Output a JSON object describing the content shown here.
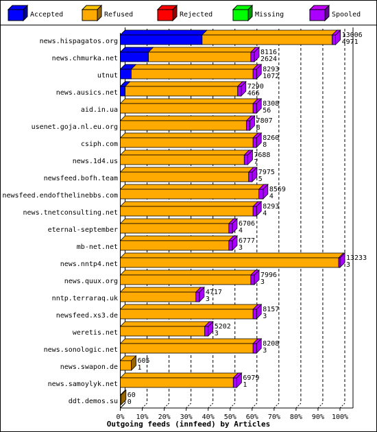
{
  "chart_data": {
    "type": "bar",
    "stacked": true,
    "orientation": "horizontal",
    "xlabel": "Outgoing feeds (innfeed) by Articles",
    "xticks": [
      "0%",
      "10%",
      "20%",
      "30%",
      "40%",
      "50%",
      "60%",
      "70%",
      "80%",
      "90%",
      "100%"
    ],
    "legend": {
      "placement": "top",
      "items": [
        {
          "name": "Accepted",
          "color": "#0000ff"
        },
        {
          "name": "Refused",
          "color": "#ffaa00"
        },
        {
          "name": "Rejected",
          "color": "#ff0000"
        },
        {
          "name": "Missing",
          "color": "#00ff00"
        },
        {
          "name": "Spooled",
          "color": "#aa00ff"
        }
      ]
    },
    "grid": true,
    "rows": [
      {
        "label": "news.hispagatos.org",
        "offered": 13006,
        "refused": 4971,
        "accepted": 0.38,
        "refused_frac": 0.62,
        "rejected": 0,
        "spooled": 0.05,
        "bar_scale": 0.98
      },
      {
        "label": "news.chmurka.net",
        "offered": 8116,
        "refused": 2624,
        "accepted": 0.21,
        "refused_frac": 0.38,
        "rejected": 0.02,
        "spooled": 0.05,
        "bar_scale": 0.61
      },
      {
        "label": "utnut",
        "offered": 8293,
        "refused": 1072,
        "accepted": 0.08,
        "refused_frac": 0.54,
        "rejected": 0,
        "spooled": 0.05,
        "bar_scale": 0.62
      },
      {
        "label": "news.ausics.net",
        "offered": 7290,
        "refused": 466,
        "accepted": 0.04,
        "refused_frac": 0.51,
        "rejected": 0,
        "spooled": 0.05,
        "bar_scale": 0.55
      },
      {
        "label": "aid.in.ua",
        "offered": 8308,
        "refused": 56,
        "accepted": 0,
        "refused_frac": 0.61,
        "rejected": 0.01,
        "spooled": 0.05,
        "bar_scale": 0.62
      },
      {
        "label": "usenet.goja.nl.eu.org",
        "offered": 7807,
        "refused": 8,
        "accepted": 0,
        "refused_frac": 0.59,
        "rejected": 0,
        "spooled": 0.05,
        "bar_scale": 0.59
      },
      {
        "label": "csiph.com",
        "offered": 8260,
        "refused": 8,
        "accepted": 0,
        "refused_frac": 0.62,
        "rejected": 0,
        "spooled": 0.05,
        "bar_scale": 0.62
      },
      {
        "label": "news.1d4.us",
        "offered": 7688,
        "refused": 7,
        "accepted": 0,
        "refused_frac": 0.58,
        "rejected": 0,
        "spooled": 0.05,
        "bar_scale": 0.58
      },
      {
        "label": "newsfeed.bofh.team",
        "offered": 7975,
        "refused": 5,
        "accepted": 0,
        "refused_frac": 0.6,
        "rejected": 0,
        "spooled": 0.05,
        "bar_scale": 0.6
      },
      {
        "label": "newsfeed.endofthelinebbs.com",
        "offered": 8569,
        "refused": 4,
        "accepted": 0,
        "refused_frac": 0.61,
        "rejected": 0,
        "spooled": 0.06,
        "bar_scale": 0.65
      },
      {
        "label": "news.tnetconsulting.net",
        "offered": 8293,
        "refused": 4,
        "accepted": 0,
        "refused_frac": 0.62,
        "rejected": 0,
        "spooled": 0.05,
        "bar_scale": 0.62
      },
      {
        "label": "eternal-september",
        "offered": 6706,
        "refused": 4,
        "accepted": 0,
        "refused_frac": 0.51,
        "rejected": 0,
        "spooled": 0.05,
        "bar_scale": 0.51
      },
      {
        "label": "mb-net.net",
        "offered": 6777,
        "refused": 3,
        "accepted": 0,
        "refused_frac": 0.51,
        "rejected": 0,
        "spooled": 0.05,
        "bar_scale": 0.51
      },
      {
        "label": "news.nntp4.net",
        "offered": 13233,
        "refused": 3,
        "accepted": 0,
        "refused_frac": 0.99,
        "rejected": 0,
        "spooled": 0.02,
        "bar_scale": 1.0
      },
      {
        "label": "news.quux.org",
        "offered": 7996,
        "refused": 3,
        "accepted": 0,
        "refused_frac": 0.61,
        "rejected": 0,
        "spooled": 0.05,
        "bar_scale": 0.61
      },
      {
        "label": "nntp.terraraq.uk",
        "offered": 4717,
        "refused": 3,
        "accepted": 0,
        "refused_frac": 0.36,
        "rejected": 0,
        "spooled": 0.05,
        "bar_scale": 0.36
      },
      {
        "label": "newsfeed.xs3.de",
        "offered": 8157,
        "refused": 3,
        "accepted": 0,
        "refused_frac": 0.62,
        "rejected": 0,
        "spooled": 0.05,
        "bar_scale": 0.62
      },
      {
        "label": "weretis.net",
        "offered": 5202,
        "refused": 3,
        "accepted": 0,
        "refused_frac": 0.4,
        "rejected": 0,
        "spooled": 0.05,
        "bar_scale": 0.4
      },
      {
        "label": "news.sonologic.net",
        "offered": 8208,
        "refused": 3,
        "accepted": 0,
        "refused_frac": 0.62,
        "rejected": 0,
        "spooled": 0.05,
        "bar_scale": 0.62
      },
      {
        "label": "news.swapon.de",
        "offered": 605,
        "refused": 1,
        "accepted": 0,
        "refused_frac": 0.05,
        "rejected": 0,
        "spooled": 0,
        "bar_scale": 0.05
      },
      {
        "label": "news.samoylyk.net",
        "offered": 6979,
        "refused": 1,
        "accepted": 0,
        "refused_frac": 0.53,
        "rejected": 0,
        "spooled": 0.05,
        "bar_scale": 0.53
      },
      {
        "label": "ddt.demos.su",
        "offered": 60,
        "refused": 0,
        "accepted": 0,
        "refused_frac": 0.004,
        "rejected": 0,
        "spooled": 0,
        "bar_scale": 0.004
      }
    ]
  }
}
